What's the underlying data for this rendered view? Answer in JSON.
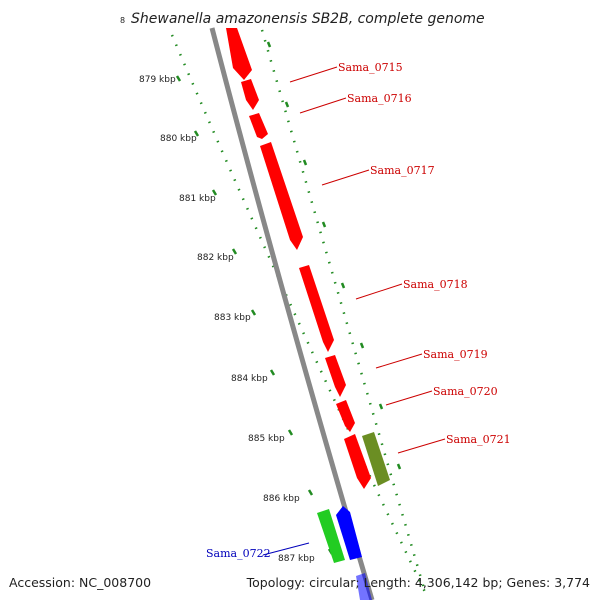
{
  "title": {
    "prefix": "8",
    "text": "Shewanella amazonensis SB2B, complete genome"
  },
  "ticks": [
    {
      "label": "879 kbp"
    },
    {
      "label": "880 kbp"
    },
    {
      "label": "881 kbp"
    },
    {
      "label": "882 kbp"
    },
    {
      "label": "883 kbp"
    },
    {
      "label": "884 kbp"
    },
    {
      "label": "885 kbp"
    },
    {
      "label": "886 kbp"
    },
    {
      "label": "887 kbp"
    }
  ],
  "genes": [
    {
      "name": "Sama_0715",
      "color": "#cc0000"
    },
    {
      "name": "Sama_0716",
      "color": "#cc0000"
    },
    {
      "name": "Sama_0717",
      "color": "#cc0000"
    },
    {
      "name": "Sama_0718",
      "color": "#cc0000"
    },
    {
      "name": "Sama_0719",
      "color": "#cc0000"
    },
    {
      "name": "Sama_0720",
      "color": "#cc0000"
    },
    {
      "name": "Sama_0721",
      "color": "#cc0000"
    },
    {
      "name": "Sama_0722",
      "color": "#0000bb"
    }
  ],
  "colors": {
    "forward_cds": "#ff0000",
    "other_feature": "#6b8e23",
    "reverse_green": "#22cc22",
    "reverse_blue": "#0000ff",
    "backbone": "#888888",
    "tick_ring": "#228b22"
  },
  "footer": {
    "accession": "Accession: NC_008700",
    "topology": "Topology: circular; Length: 4,306,142 bp; Genes: 3,774"
  }
}
